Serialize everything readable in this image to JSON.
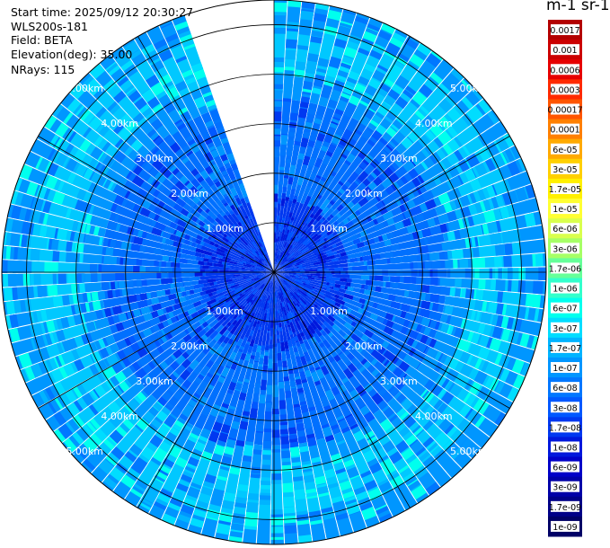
{
  "header": {
    "start_time": "Start time: 2025/09/12 20:30:27",
    "instrument": "WLS200s-181",
    "field": "Field: BETA",
    "elevation": "Elevation(deg): 35.00",
    "nrays": "NRays: 115"
  },
  "colorbar": {
    "title": "m-1 sr-1",
    "ticks": [
      "0.0017",
      "0.001",
      "0.0006",
      "0.0003",
      "0.00017",
      "0.0001",
      "6e-05",
      "3e-05",
      "1.7e-05",
      "1e-05",
      "6e-06",
      "3e-06",
      "1.7e-06",
      "1e-06",
      "6e-07",
      "3e-07",
      "1.7e-07",
      "1e-07",
      "6e-08",
      "3e-08",
      "1.7e-08",
      "1e-08",
      "6e-09",
      "3e-09",
      "1.7e-09",
      "1e-09"
    ],
    "colors": [
      "#b30000",
      "#cc0000",
      "#e60000",
      "#ff2a00",
      "#ff5500",
      "#ff8000",
      "#ffaa00",
      "#ffd000",
      "#fff000",
      "#ffff33",
      "#d9ff4d",
      "#a6ff66",
      "#66ff99",
      "#33ffcc",
      "#00ffee",
      "#00ddff",
      "#00b4ff",
      "#0096ff",
      "#0077ff",
      "#0058ff",
      "#0038f0",
      "#0018dc",
      "#0000c8",
      "#0000a8",
      "#000088",
      "#000066"
    ]
  },
  "chart_data": {
    "type": "heatmap",
    "projection": "polar (PPI)",
    "field": "BETA",
    "elevation_deg": 35.0,
    "n_rays": 115,
    "ring_labels": [
      "1.00km",
      "2.00km",
      "3.00km",
      "4.00km",
      "5.00km"
    ],
    "ring_ranges_km": [
      1,
      2,
      3,
      4,
      5
    ],
    "max_range_km": 5.5,
    "missing_sector_deg": [
      341,
      360
    ],
    "value_bands": [
      {
        "range_km": [
          0.0,
          1.5
        ],
        "beta": "1.7e-08"
      },
      {
        "range_km": [
          1.5,
          3.5
        ],
        "beta": "3e-08"
      },
      {
        "range_km": [
          3.5,
          4.0
        ],
        "beta": "6e-08"
      },
      {
        "range_km": [
          4.0,
          5.0
        ],
        "beta": "1.7e-07"
      },
      {
        "range_km": [
          5.0,
          5.5
        ],
        "beta": "6e-08"
      }
    ]
  }
}
